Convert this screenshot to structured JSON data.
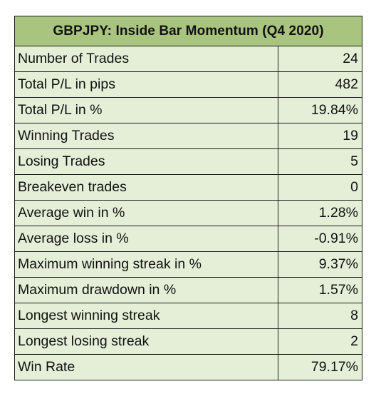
{
  "table": {
    "title": "GBPJPY: Inside Bar Momentum (Q4 2020)",
    "rows": [
      {
        "label": "Number of Trades",
        "value": "24"
      },
      {
        "label": "Total P/L in pips",
        "value": "482"
      },
      {
        "label": "Total P/L in %",
        "value": "19.84%"
      },
      {
        "label": "Winning Trades",
        "value": "19"
      },
      {
        "label": "Losing Trades",
        "value": "5"
      },
      {
        "label": "Breakeven trades",
        "value": "0"
      },
      {
        "label": "Average win in %",
        "value": "1.28%"
      },
      {
        "label": "Average loss in %",
        "value": "-0.91%"
      },
      {
        "label": "Maximum winning streak in %",
        "value": "9.37%"
      },
      {
        "label": "Maximum drawdown in %",
        "value": "1.57%"
      },
      {
        "label": "Longest winning streak",
        "value": "8"
      },
      {
        "label": "Longest losing streak",
        "value": "2"
      },
      {
        "label": "Win Rate",
        "value": "79.17%"
      }
    ]
  },
  "colors": {
    "header_background": "#a9c47f",
    "row_background": "#e5efd8",
    "border": "#1a1a1a",
    "text": "#111111"
  }
}
